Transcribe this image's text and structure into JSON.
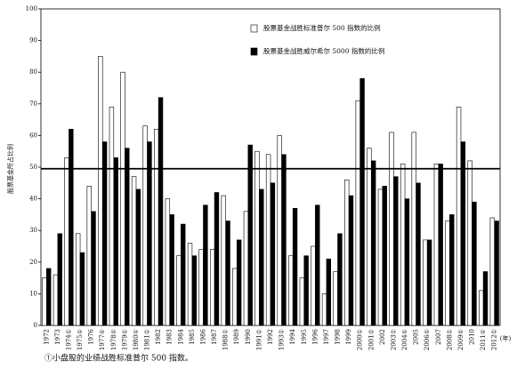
{
  "chart_data": {
    "type": "bar",
    "y_label": "股票基金所占比例",
    "x_label": "(年)",
    "footnote": "①小盘股的业绩战胜标准普尔 500 指数。",
    "categories": [
      "1972",
      "1973",
      "1974①",
      "1975①",
      "1976",
      "1977①",
      "1978①",
      "1979①",
      "1980①",
      "1981①",
      "1982",
      "1983",
      "1984",
      "1985",
      "1986",
      "1987",
      "1988①",
      "1989",
      "1990",
      "1991①",
      "1992",
      "1993①",
      "1994",
      "1995",
      "1996",
      "1997",
      "1998",
      "1999",
      "2000①",
      "2001①",
      "2002",
      "2003①",
      "2004①",
      "2005",
      "2006①",
      "2007",
      "2008①",
      "2009①",
      "2010",
      "2011①",
      "2012①"
    ],
    "series": [
      {
        "name": "股票基金战胜标准普尔 500 指数的比例",
        "color": "#ffffff",
        "values": [
          15,
          16,
          53,
          29,
          44,
          85,
          69,
          80,
          47,
          63,
          62,
          40,
          22,
          26,
          24,
          24,
          41,
          18,
          36,
          55,
          54,
          60,
          22,
          15,
          25,
          10,
          17,
          46,
          71,
          56,
          43,
          61,
          51,
          61,
          27,
          51,
          33,
          69,
          52,
          11,
          34
        ]
      },
      {
        "name": "股票基金战胜威尔希尔 5000 指数的比例",
        "color": "#000000",
        "values": [
          18,
          29,
          62,
          23,
          36,
          58,
          53,
          56,
          43,
          58,
          72,
          35,
          32,
          22,
          38,
          42,
          33,
          27,
          57,
          43,
          45,
          54,
          37,
          22,
          38,
          21,
          29,
          41,
          78,
          52,
          44,
          47,
          40,
          45,
          27,
          51,
          35,
          58,
          39,
          17,
          33
        ]
      }
    ],
    "reference_line": 49.5,
    "ylim": [
      0,
      100
    ],
    "yticks": [
      0,
      10,
      20,
      30,
      40,
      50,
      60,
      70,
      80,
      90,
      100
    ]
  }
}
